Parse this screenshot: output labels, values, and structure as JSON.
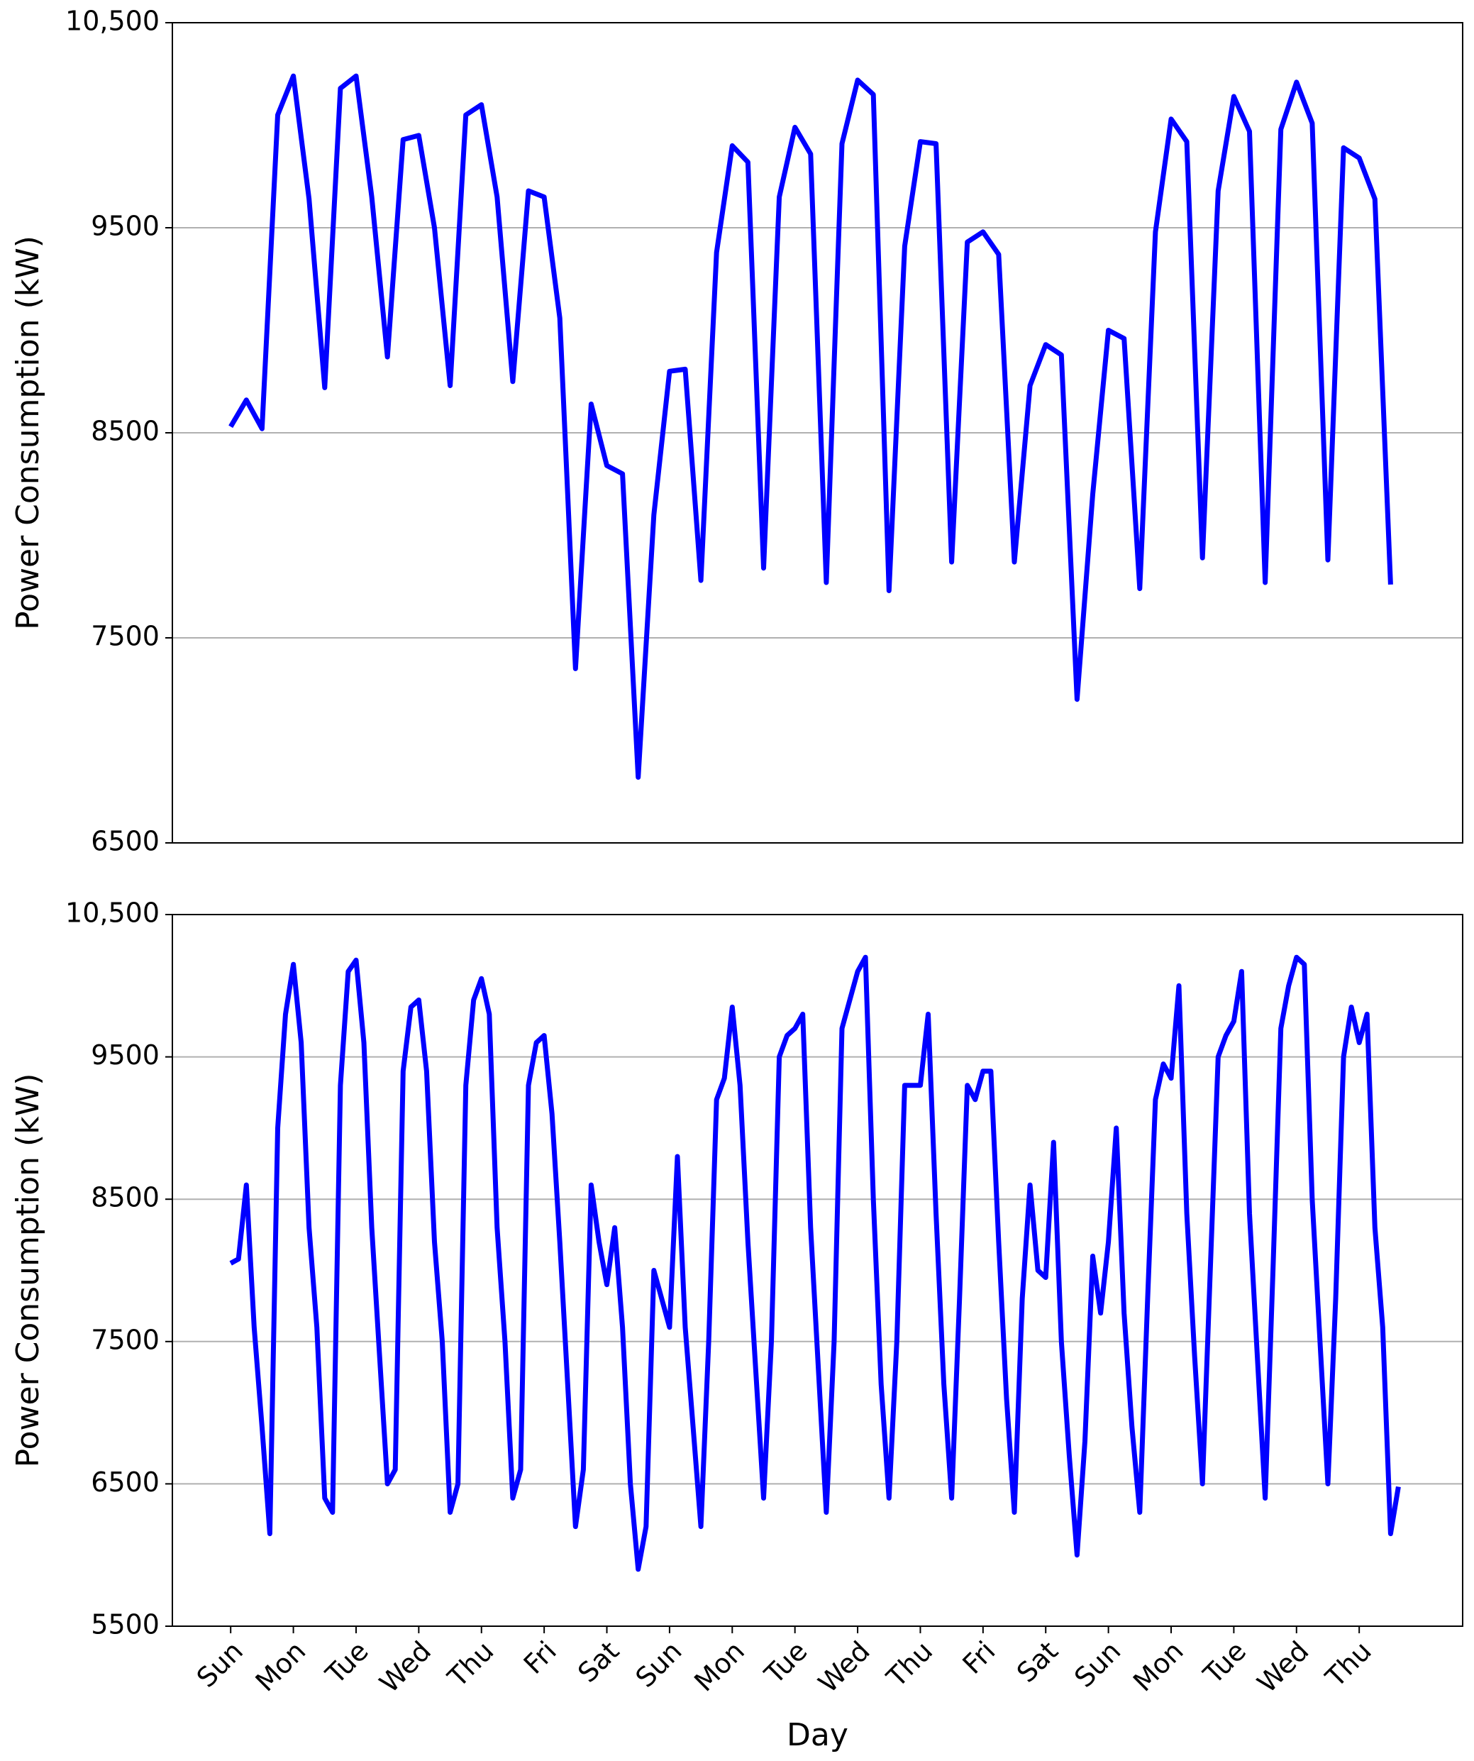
{
  "chart_data": [
    {
      "type": "line",
      "ylabel": "Power Consumption (kW)",
      "x": [
        0,
        0.25,
        0.5,
        0.75,
        1,
        1.25,
        1.5,
        1.75,
        2,
        2.25,
        2.5,
        2.75,
        3,
        3.25,
        3.5,
        3.75,
        4,
        4.25,
        4.5,
        4.75,
        5,
        5.25,
        5.5,
        5.75,
        6,
        6.25,
        6.5,
        6.75,
        7,
        7.25,
        7.5,
        7.75,
        8,
        8.25,
        8.5,
        8.75,
        9,
        9.25,
        9.5,
        9.75,
        10,
        10.25,
        10.5,
        10.75,
        11,
        11.25,
        11.5,
        11.75,
        12,
        12.25,
        12.5,
        12.75,
        13,
        13.25,
        13.5,
        13.75,
        14,
        14.25,
        14.5,
        14.75,
        15,
        15.25,
        15.5,
        15.75,
        16,
        16.25,
        16.5,
        16.75,
        17,
        17.25,
        17.5,
        17.75,
        18,
        18.25,
        18.5
      ],
      "series": [
        {
          "color": "#0000ff",
          "values": [
            8530,
            8660,
            8520,
            10050,
            10240,
            9640,
            8720,
            10180,
            10240,
            9650,
            8870,
            9930,
            9950,
            9500,
            8730,
            10050,
            10100,
            9650,
            8750,
            9680,
            9650,
            9060,
            7350,
            8640,
            8340,
            8300,
            6820,
            8100,
            8800,
            8810,
            7780,
            9380,
            9900,
            9820,
            7840,
            9650,
            9990,
            9860,
            7770,
            9910,
            10220,
            10150,
            7730,
            9410,
            9920,
            9910,
            7870,
            9430,
            9480,
            9370,
            7870,
            8730,
            8930,
            8880,
            7200,
            8200,
            9000,
            8960,
            7740,
            9480,
            10030,
            9920,
            7890,
            9680,
            10140,
            9970,
            7770,
            9980,
            10210,
            10010,
            7880,
            9890,
            9840,
            9640,
            7760
          ]
        }
      ],
      "xlim": [
        -0.93,
        19.65
      ],
      "ylim": [
        6500,
        10500
      ],
      "yticks": [
        6500,
        7500,
        8500,
        9500,
        {
          "value": 10500,
          "label": "10,500"
        }
      ],
      "grid": true
    },
    {
      "type": "line",
      "ylabel": "Power Consumption (kW)",
      "xlabel": "Day",
      "x": [
        0,
        0.125,
        0.25,
        0.375,
        0.5,
        0.625,
        0.75,
        0.875,
        1,
        1.125,
        1.25,
        1.375,
        1.5,
        1.625,
        1.75,
        1.875,
        2,
        2.125,
        2.25,
        2.375,
        2.5,
        2.625,
        2.75,
        2.875,
        3,
        3.125,
        3.25,
        3.375,
        3.5,
        3.625,
        3.75,
        3.875,
        4,
        4.125,
        4.25,
        4.375,
        4.5,
        4.625,
        4.75,
        4.875,
        5,
        5.125,
        5.25,
        5.375,
        5.5,
        5.625,
        5.75,
        5.875,
        6,
        6.125,
        6.25,
        6.375,
        6.5,
        6.625,
        6.75,
        6.875,
        7,
        7.125,
        7.25,
        7.375,
        7.5,
        7.625,
        7.75,
        7.875,
        8,
        8.125,
        8.25,
        8.375,
        8.5,
        8.625,
        8.75,
        8.875,
        9,
        9.125,
        9.25,
        9.375,
        9.5,
        9.625,
        9.75,
        9.875,
        10,
        10.125,
        10.25,
        10.375,
        10.5,
        10.625,
        10.75,
        10.875,
        11,
        11.125,
        11.25,
        11.375,
        11.5,
        11.625,
        11.75,
        11.875,
        12,
        12.125,
        12.25,
        12.375,
        12.5,
        12.625,
        12.75,
        12.875,
        13,
        13.125,
        13.25,
        13.375,
        13.5,
        13.625,
        13.75,
        13.875,
        14,
        14.125,
        14.25,
        14.375,
        14.5,
        14.625,
        14.75,
        14.875,
        15,
        15.125,
        15.25,
        15.375,
        15.5,
        15.625,
        15.75,
        15.875,
        16,
        16.125,
        16.25,
        16.375,
        16.5,
        16.625,
        16.75,
        16.875,
        17,
        17.125,
        17.25,
        17.375,
        17.5,
        17.625,
        17.75,
        17.875,
        18,
        18.125,
        18.25,
        18.375,
        18.5,
        18.625
      ],
      "series": [
        {
          "color": "#0000ff",
          "values": [
            8050,
            8080,
            8600,
            7600,
            6900,
            6150,
            9000,
            9800,
            10150,
            9600,
            8300,
            7600,
            6400,
            6300,
            9300,
            10100,
            10180,
            9600,
            8300,
            7400,
            6500,
            6600,
            9400,
            9850,
            9900,
            9400,
            8200,
            7500,
            6300,
            6500,
            9300,
            9900,
            10050,
            9800,
            8300,
            7500,
            6400,
            6600,
            9300,
            9600,
            9650,
            9100,
            8200,
            7200,
            6200,
            6600,
            8600,
            8200,
            7900,
            8300,
            7600,
            6500,
            5900,
            6200,
            8000,
            7800,
            7600,
            8800,
            7600,
            6900,
            6200,
            7500,
            9200,
            9350,
            9850,
            9300,
            8200,
            7300,
            6400,
            7500,
            9500,
            9650,
            9700,
            9800,
            8300,
            7300,
            6300,
            7500,
            9700,
            9900,
            10100,
            10200,
            8500,
            7200,
            6400,
            7500,
            9300,
            9300,
            9300,
            9800,
            8400,
            7200,
            6400,
            7800,
            9300,
            9200,
            9400,
            9400,
            8200,
            7100,
            6300,
            7800,
            8600,
            8000,
            7950,
            8900,
            7500,
            6700,
            6000,
            6800,
            8100,
            7700,
            8200,
            9000,
            7700,
            6900,
            6300,
            7800,
            9200,
            9450,
            9350,
            10000,
            8400,
            7400,
            6500,
            8000,
            9500,
            9650,
            9750,
            10100,
            8400,
            7400,
            6400,
            8000,
            9700,
            10000,
            10200,
            10150,
            8500,
            7500,
            6500,
            7800,
            9500,
            9850,
            9600,
            9800,
            8300,
            7600,
            6150,
            6480
          ]
        }
      ],
      "xlim": [
        -0.93,
        19.65
      ],
      "ylim": [
        5500,
        10500
      ],
      "yticks": [
        5500,
        6500,
        7500,
        8500,
        9500,
        {
          "value": 10500,
          "label": "10,500"
        }
      ],
      "xticks": [
        {
          "value": 0,
          "label": "Sun"
        },
        {
          "value": 1,
          "label": "Mon"
        },
        {
          "value": 2,
          "label": "Tue"
        },
        {
          "value": 3,
          "label": "Wed"
        },
        {
          "value": 4,
          "label": "Thu"
        },
        {
          "value": 5,
          "label": "Fri"
        },
        {
          "value": 6,
          "label": "Sat"
        },
        {
          "value": 7,
          "label": "Sun"
        },
        {
          "value": 8,
          "label": "Mon"
        },
        {
          "value": 9,
          "label": "Tue"
        },
        {
          "value": 10,
          "label": "Wed"
        },
        {
          "value": 11,
          "label": "Thu"
        },
        {
          "value": 12,
          "label": "Fri"
        },
        {
          "value": 13,
          "label": "Sat"
        },
        {
          "value": 14,
          "label": "Sun"
        },
        {
          "value": 15,
          "label": "Mon"
        },
        {
          "value": 16,
          "label": "Tue"
        },
        {
          "value": 17,
          "label": "Wed"
        },
        {
          "value": 18,
          "label": "Thu"
        }
      ],
      "grid": true
    }
  ]
}
